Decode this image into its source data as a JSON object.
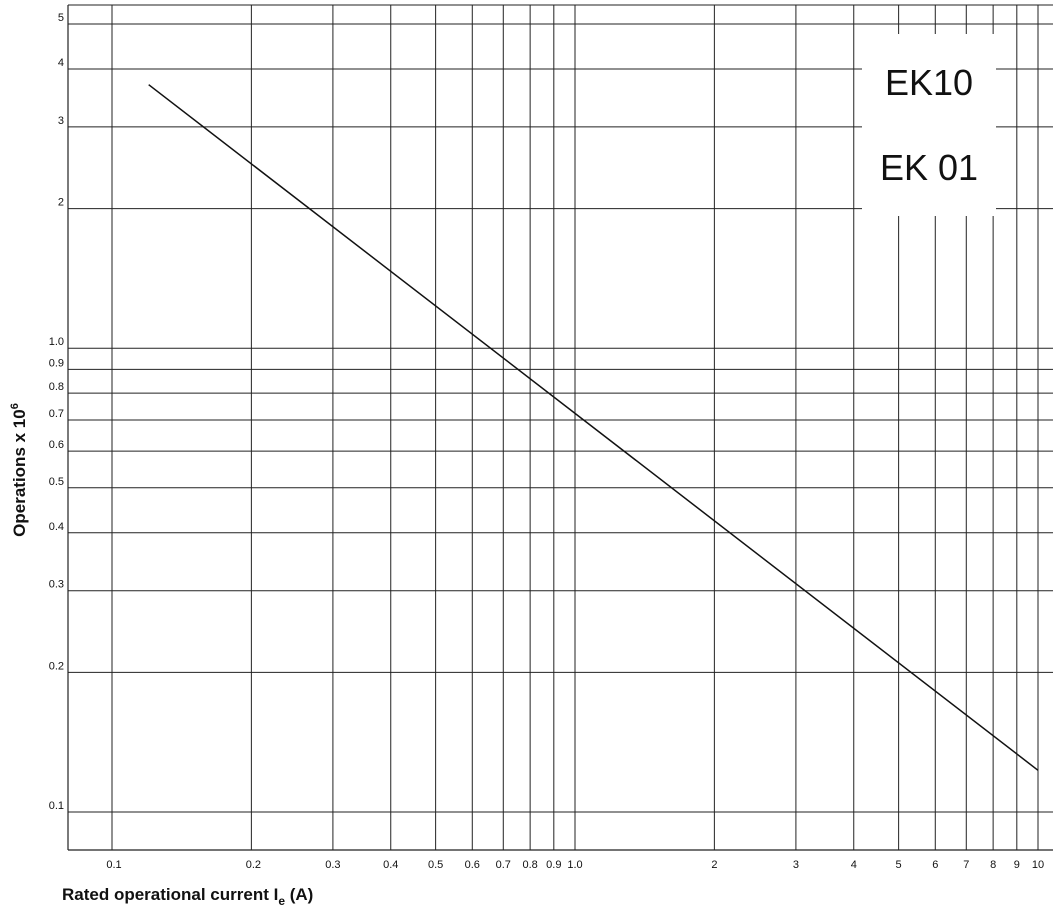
{
  "chart_data": {
    "type": "line",
    "xlabel_main": "Rated operational current I",
    "xlabel_sub": "e",
    "xlabel_unit": " (A)",
    "ylabel_main": "Operations x 10",
    "ylabel_sup": "6",
    "x_scale": "log",
    "y_scale": "log",
    "xlim": [
      0.1,
      10
    ],
    "ylim": [
      0.1,
      5
    ],
    "grid": true,
    "legend_position": "top-right",
    "x_ticks": [
      {
        "v": 0.1,
        "label": "0.1"
      },
      {
        "v": 0.2,
        "label": "0.2"
      },
      {
        "v": 0.3,
        "label": "0.3"
      },
      {
        "v": 0.4,
        "label": "0.4"
      },
      {
        "v": 0.5,
        "label": "0.5"
      },
      {
        "v": 0.6,
        "label": "0.6"
      },
      {
        "v": 0.7,
        "label": "0.7"
      },
      {
        "v": 0.8,
        "label": "0.8"
      },
      {
        "v": 0.9,
        "label": "0.9"
      },
      {
        "v": 1.0,
        "label": "1.0"
      },
      {
        "v": 2,
        "label": "2"
      },
      {
        "v": 3,
        "label": "3"
      },
      {
        "v": 4,
        "label": "4"
      },
      {
        "v": 5,
        "label": "5"
      },
      {
        "v": 6,
        "label": "6"
      },
      {
        "v": 7,
        "label": "7"
      },
      {
        "v": 8,
        "label": "8"
      },
      {
        "v": 9,
        "label": "9"
      },
      {
        "v": 10,
        "label": "10"
      }
    ],
    "y_ticks": [
      {
        "v": 0.1,
        "label": "0.1"
      },
      {
        "v": 0.2,
        "label": "0.2"
      },
      {
        "v": 0.3,
        "label": "0.3"
      },
      {
        "v": 0.4,
        "label": "0.4"
      },
      {
        "v": 0.5,
        "label": "0.5"
      },
      {
        "v": 0.6,
        "label": "0.6"
      },
      {
        "v": 0.7,
        "label": "0.7"
      },
      {
        "v": 0.8,
        "label": "0.8"
      },
      {
        "v": 0.9,
        "label": "0.9"
      },
      {
        "v": 1.0,
        "label": "1.0"
      },
      {
        "v": 2,
        "label": "2"
      },
      {
        "v": 3,
        "label": "3"
      },
      {
        "v": 4,
        "label": "4"
      },
      {
        "v": 5,
        "label": "5"
      }
    ],
    "series": [
      {
        "x": [
          0.12,
          10
        ],
        "y": [
          3.7,
          0.123
        ],
        "color": "#111111"
      }
    ],
    "legend": [
      "EK10",
      "EK 01"
    ]
  }
}
